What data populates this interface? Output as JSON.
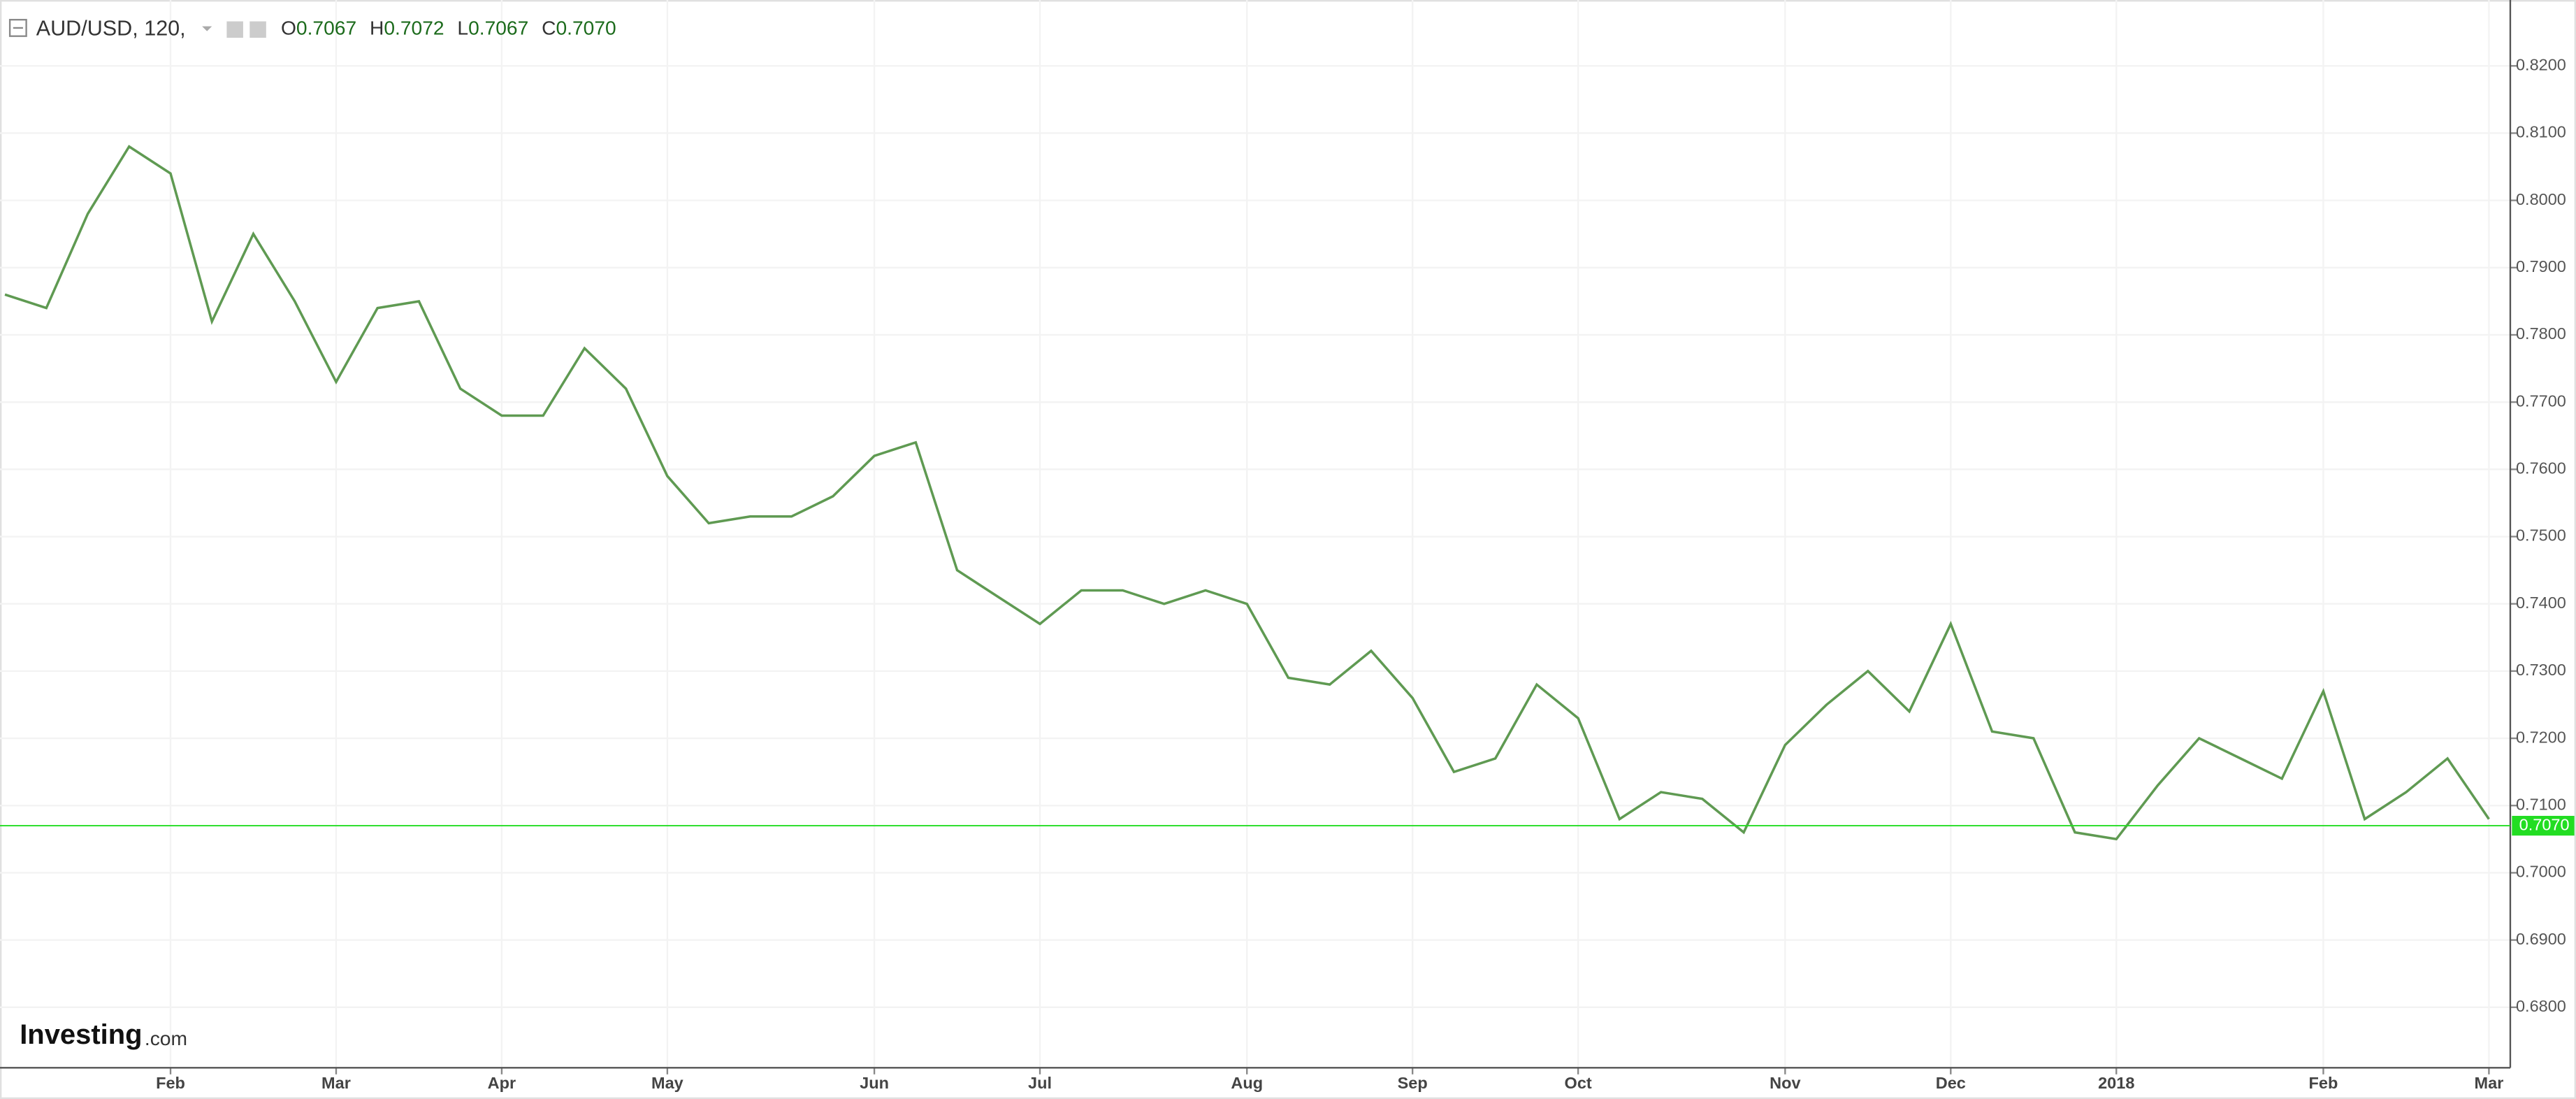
{
  "header": {
    "symbol": "AUD/USD, 120,",
    "ohlc": [
      {
        "letter": "O",
        "value": "0.7067"
      },
      {
        "letter": "H",
        "value": "0.7072"
      },
      {
        "letter": "L",
        "value": "0.7067"
      },
      {
        "letter": "C",
        "value": "0.7070"
      }
    ]
  },
  "brand": {
    "name": "Investing",
    "suffix": ".com"
  },
  "chart_data": {
    "type": "line",
    "color": "#5f9a52",
    "categories": [
      null,
      null,
      null,
      null,
      "Feb",
      null,
      null,
      null,
      "Mar",
      null,
      null,
      null,
      "Apr",
      null,
      null,
      null,
      "May",
      null,
      null,
      null,
      null,
      "Jun",
      null,
      null,
      null,
      "Jul",
      null,
      null,
      null,
      null,
      "Aug",
      null,
      null,
      null,
      "Sep",
      null,
      null,
      null,
      "Oct",
      null,
      null,
      null,
      null,
      "Nov",
      null,
      null,
      null,
      "Dec",
      null,
      null,
      null,
      "2018",
      null,
      null,
      null,
      null,
      "Feb",
      null,
      null,
      null,
      "Mar"
    ],
    "values": [
      0.786,
      0.784,
      0.798,
      0.808,
      0.804,
      0.782,
      0.795,
      0.785,
      0.773,
      0.784,
      0.785,
      0.772,
      0.768,
      0.768,
      0.778,
      0.772,
      0.759,
      0.752,
      0.753,
      0.753,
      0.756,
      0.762,
      0.764,
      0.745,
      0.741,
      0.737,
      0.742,
      0.742,
      0.74,
      0.742,
      0.74,
      0.729,
      0.728,
      0.733,
      0.726,
      0.715,
      0.717,
      0.728,
      0.723,
      0.708,
      0.712,
      0.711,
      0.706,
      0.719,
      0.725,
      0.73,
      0.724,
      0.737,
      0.721,
      0.72,
      0.706,
      0.705,
      0.713,
      0.72,
      0.717,
      0.714,
      0.727,
      0.708,
      0.712,
      0.717,
      0.708
    ],
    "ylim": [
      0.671,
      0.8298
    ],
    "yticks": [
      {
        "value": 0.68,
        "label": "0.6800"
      },
      {
        "value": 0.69,
        "label": "0.6900"
      },
      {
        "value": 0.7,
        "label": "0.7000"
      },
      {
        "value": 0.71,
        "label": "0.7100"
      },
      {
        "value": 0.72,
        "label": "0.7200"
      },
      {
        "value": 0.73,
        "label": "0.7300"
      },
      {
        "value": 0.74,
        "label": "0.7400"
      },
      {
        "value": 0.75,
        "label": "0.7500"
      },
      {
        "value": 0.76,
        "label": "0.7600"
      },
      {
        "value": 0.77,
        "label": "0.7700"
      },
      {
        "value": 0.78,
        "label": "0.7800"
      },
      {
        "value": 0.79,
        "label": "0.7900"
      },
      {
        "value": 0.8,
        "label": "0.8000"
      },
      {
        "value": 0.81,
        "label": "0.8100"
      },
      {
        "value": 0.82,
        "label": "0.8200"
      }
    ],
    "grid": true,
    "last_price": {
      "value": 0.707,
      "label": "0.7070",
      "color": "#22dd22"
    }
  }
}
